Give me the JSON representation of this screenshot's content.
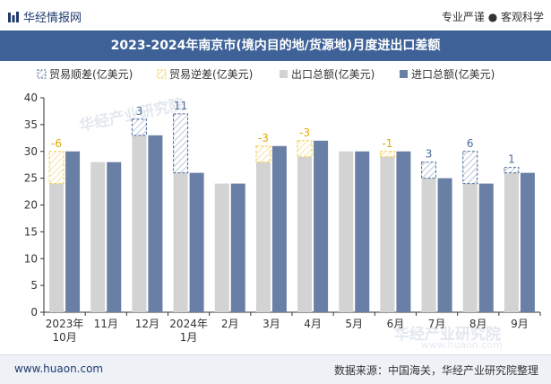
{
  "header": {
    "logo_text": "华经情报网",
    "tagline": "专业严谨 ● 客观科学"
  },
  "footer": {
    "website": "www.huaon.com",
    "source": "数据来源：中国海关，华经产业研究院整理"
  },
  "watermarks": [
    "华经产业研究院",
    "www.huaon.com"
  ],
  "colors": {
    "export": "#d3d3d3",
    "import": "#6a7fa5",
    "surplus": "#4b6a9a",
    "deficit": "#f2c94c",
    "title_bg": "#3e6298"
  },
  "chart_data": {
    "type": "bar",
    "title": "2023-2024年南京市(境内目的地/货源地)月度进出口差额",
    "legend": [
      "贸易顺差(亿美元)",
      "贸易逆差(亿美元)",
      "出口总额(亿美元)",
      "进口总额(亿美元)"
    ],
    "categories": [
      "2023年10月",
      "11月",
      "12月",
      "2024年1月",
      "2月",
      "3月",
      "4月",
      "5月",
      "6月",
      "7月",
      "8月",
      "9月"
    ],
    "category_lines": [
      [
        "2023年",
        "10月"
      ],
      [
        "11月"
      ],
      [
        "12月"
      ],
      [
        "2024年",
        "1月"
      ],
      [
        "2月"
      ],
      [
        "3月"
      ],
      [
        "4月"
      ],
      [
        "5月"
      ],
      [
        "6月"
      ],
      [
        "7月"
      ],
      [
        "8月"
      ],
      [
        "9月"
      ]
    ],
    "series": [
      {
        "name": "出口总额(亿美元)",
        "values": [
          24,
          28,
          36,
          37,
          24,
          28,
          29,
          30,
          29,
          28,
          30,
          27
        ]
      },
      {
        "name": "进口总额(亿美元)",
        "values": [
          30,
          28,
          33,
          26,
          24,
          31,
          32,
          30,
          30,
          25,
          24,
          26
        ]
      }
    ],
    "balance_labels": [
      "-6",
      "",
      "3",
      "11",
      "",
      "-3",
      "-3",
      "",
      "-1",
      "3",
      "6",
      "1"
    ],
    "ylim": [
      0,
      40
    ],
    "yticks": [
      0,
      5,
      10,
      15,
      20,
      25,
      30,
      35,
      40
    ],
    "xlabel": "",
    "ylabel": "",
    "legend_position": "top"
  }
}
